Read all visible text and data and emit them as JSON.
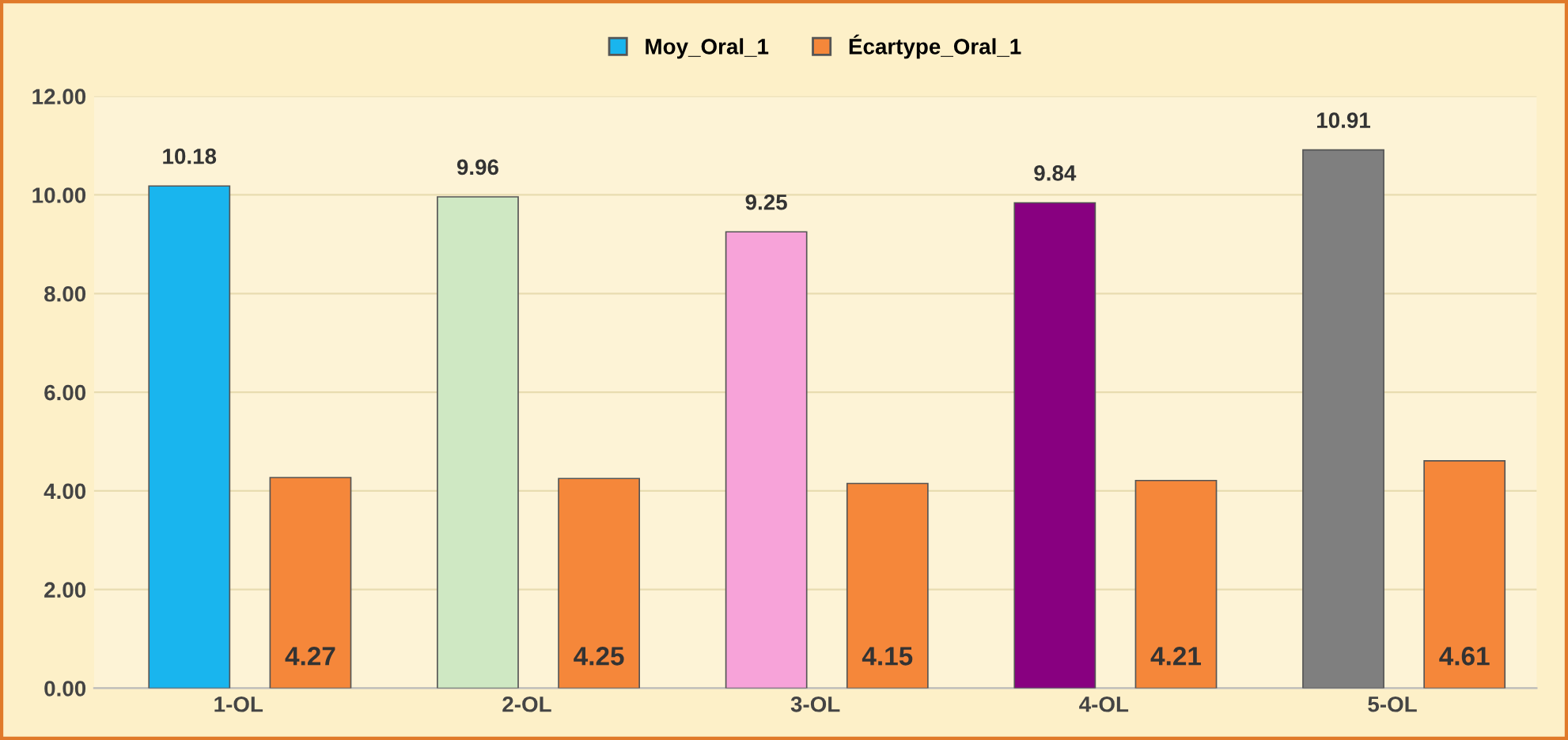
{
  "chart_data": {
    "type": "bar",
    "categories": [
      "1-OL",
      "2-OL",
      "3-OL",
      "4-OL",
      "5-OL"
    ],
    "series": [
      {
        "name": "Moy_Oral_1",
        "color": "#19b5ee",
        "colors": [
          "#19b5ee",
          "#cfe8c3",
          "#f7a3d9",
          "#880080",
          "#7f7f7f"
        ],
        "values": [
          10.18,
          9.96,
          9.25,
          9.84,
          10.91
        ]
      },
      {
        "name": "Écartype_Oral_1",
        "color": "#f5873a",
        "values": [
          4.27,
          4.25,
          4.15,
          4.21,
          4.61
        ]
      }
    ],
    "ylim": [
      0,
      12
    ],
    "yticks": [
      {
        "value": 0,
        "label": "0.00"
      },
      {
        "value": 2,
        "label": "2.00"
      },
      {
        "value": 4,
        "label": "4.00"
      },
      {
        "value": 6,
        "label": "6.00"
      },
      {
        "value": 8,
        "label": "8.00"
      },
      {
        "value": 10,
        "label": "10.00"
      },
      {
        "value": 12,
        "label": "12.00"
      }
    ],
    "grid": "y",
    "legend": "top",
    "data_labels": true
  }
}
